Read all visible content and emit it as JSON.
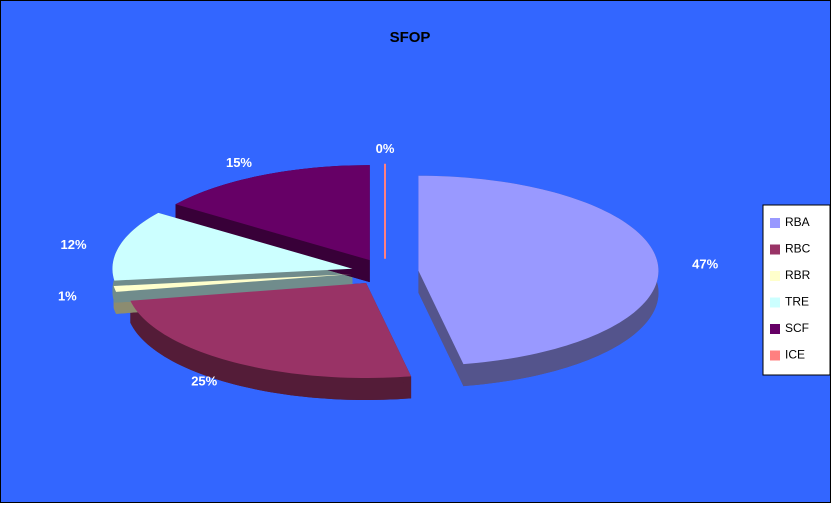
{
  "chart_data": {
    "type": "pie",
    "title": "SFOP",
    "categories": [
      "RBA",
      "RBC",
      "RBR",
      "TRE",
      "SCF",
      "ICE"
    ],
    "values": [
      47,
      25,
      1,
      12,
      15,
      0
    ],
    "value_labels": [
      "47%",
      "25%",
      "1%",
      "12%",
      "15%",
      "0%"
    ],
    "colors": [
      "#9999ff",
      "#993366",
      "#ffffcc",
      "#ccffff",
      "#660066",
      "#ff8080"
    ],
    "background": "#3366ff",
    "legend": "right"
  }
}
